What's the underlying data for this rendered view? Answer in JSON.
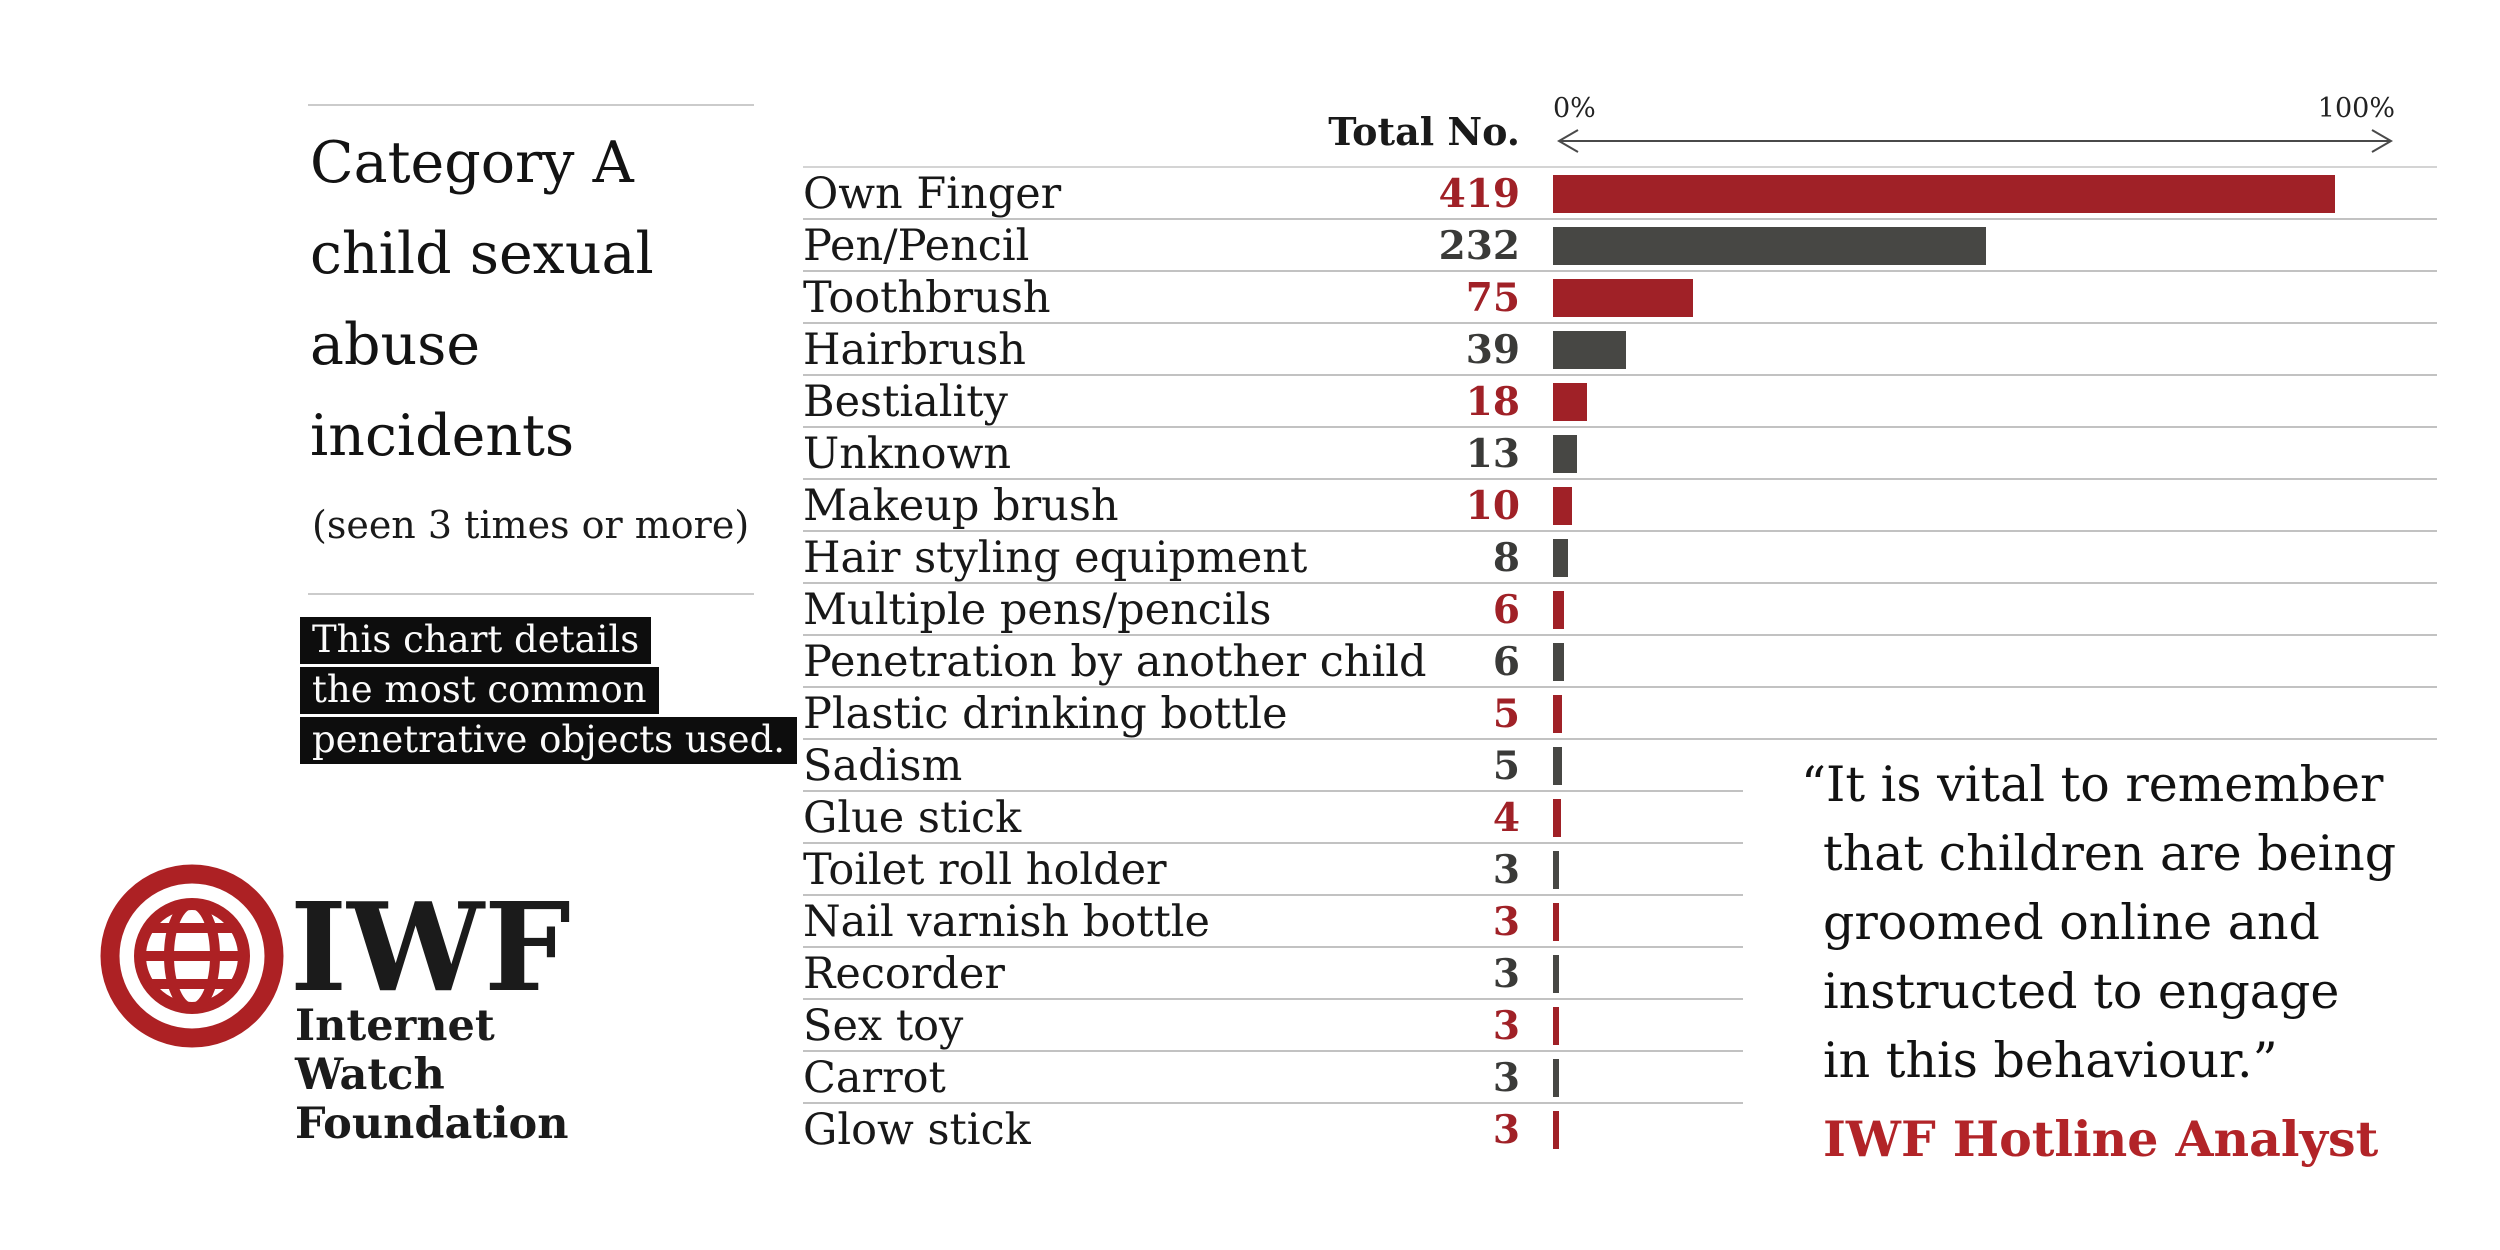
{
  "colors": {
    "bar_red": "#A02127",
    "bar_dark": "#474744",
    "value_red": "#A02127",
    "value_dark": "#3A3A38",
    "logo_red": "#AD2124",
    "attribution_red": "#B22428",
    "separator": "#C2C2C2",
    "note_background": "#0D0D0D"
  },
  "left_panel": {
    "title_lines": [
      "Category A",
      "child sexual",
      "abuse",
      "incidents"
    ],
    "subtitle": "(seen 3 times or more)",
    "note_lines": [
      "This chart details",
      "the most common",
      "penetrative objects used."
    ],
    "logo": {
      "acronym": "IWF",
      "name_lines": [
        "Internet",
        "Watch",
        "Foundation"
      ]
    }
  },
  "chart": {
    "total_header": "Total No.",
    "axis_min_label": "0%",
    "axis_max_label": "100%"
  },
  "chart_data": {
    "type": "bar",
    "orientation": "horizontal",
    "title": "Category A child sexual abuse incidents",
    "subtitle": "(seen 3 times or more)",
    "note": "This chart details the most common penetrative objects used.",
    "value_column_header": "Total No.",
    "axis": {
      "min_label": "0%",
      "max_label": "100%",
      "bar_scale_max": 419
    },
    "grid": "row separators only",
    "legend": "none",
    "categories": [
      "Own Finger",
      "Pen/Pencil",
      "Toothbrush",
      "Hairbrush",
      "Bestiality",
      "Unknown",
      "Makeup brush",
      "Hair styling equipment",
      "Multiple pens/pencils",
      "Penetration by another child",
      "Plastic drinking bottle",
      "Sadism",
      "Glue stick",
      "Toilet roll holder",
      "Nail varnish bottle",
      "Recorder",
      "Sex toy",
      "Carrot",
      "Glow stick"
    ],
    "values": [
      419,
      232,
      75,
      39,
      18,
      13,
      10,
      8,
      6,
      6,
      5,
      5,
      4,
      3,
      3,
      3,
      3,
      3,
      3
    ],
    "bar_colors": [
      "red",
      "dark",
      "red",
      "dark",
      "red",
      "dark",
      "red",
      "dark",
      "red",
      "dark",
      "red",
      "dark",
      "red",
      "dark",
      "red",
      "dark",
      "red",
      "dark",
      "red"
    ]
  },
  "quote": {
    "lines": [
      "“It is vital to remember",
      "that children are being",
      "groomed online and",
      "instructed to engage",
      "in this behaviour.”"
    ],
    "attribution": "IWF Hotline Analyst"
  }
}
